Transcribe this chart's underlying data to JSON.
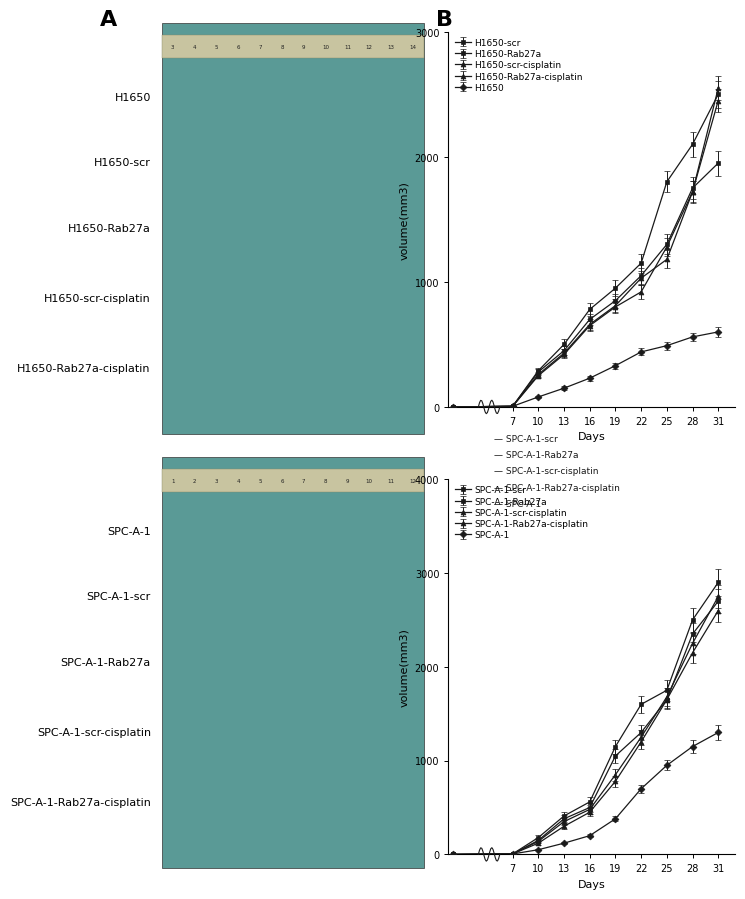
{
  "panel_A_label": "A",
  "panel_B_label": "B",
  "top_photo_labels": [
    "H1650",
    "H1650-scr",
    "H1650-Rab27a",
    "H1650-scr-cisplatin",
    "H1650-Rab27a-cisplatin"
  ],
  "bottom_photo_labels": [
    "SPC-A-1",
    "SPC-A-1-scr",
    "SPC-A-1-Rab27a",
    "SPC-A-1-scr-cisplatin",
    "SPC-A-1-Rab27a-cisplatin"
  ],
  "chart1": {
    "days": [
      0,
      7,
      10,
      13,
      16,
      19,
      22,
      25,
      28,
      31
    ],
    "ylabel": "volume(mm3)",
    "xlabel": "Days",
    "ylim": [
      0,
      3000
    ],
    "yticks": [
      0,
      1000,
      2000,
      3000
    ],
    "series": [
      {
        "label": "H1650-scr",
        "marker": "s",
        "values": [
          0,
          5,
          280,
          450,
          700,
          850,
          1050,
          1300,
          1750,
          1950
        ],
        "errors": [
          0,
          5,
          25,
          35,
          45,
          55,
          65,
          80,
          90,
          100
        ]
      },
      {
        "label": "H1650-Rab27a",
        "marker": "s",
        "values": [
          0,
          5,
          290,
          500,
          780,
          950,
          1150,
          1800,
          2100,
          2500
        ],
        "errors": [
          0,
          5,
          25,
          40,
          55,
          65,
          75,
          85,
          100,
          110
        ]
      },
      {
        "label": "H1650-scr-cisplatin",
        "marker": "^",
        "values": [
          0,
          5,
          250,
          420,
          650,
          800,
          920,
          1280,
          1720,
          2450
        ],
        "errors": [
          0,
          5,
          20,
          30,
          40,
          50,
          55,
          70,
          85,
          95
        ]
      },
      {
        "label": "H1650-Rab27a-cisplatin",
        "marker": "^",
        "values": [
          0,
          5,
          260,
          430,
          660,
          810,
          1030,
          1180,
          1720,
          2550
        ],
        "errors": [
          0,
          5,
          22,
          32,
          42,
          52,
          58,
          72,
          88,
          98
        ]
      },
      {
        "label": "H1650",
        "marker": "D",
        "values": [
          0,
          5,
          80,
          150,
          230,
          330,
          440,
          490,
          560,
          600
        ],
        "errors": [
          0,
          3,
          10,
          15,
          20,
          25,
          28,
          32,
          35,
          38
        ]
      }
    ]
  },
  "chart2": {
    "days": [
      0,
      7,
      10,
      13,
      16,
      19,
      22,
      25,
      28,
      31
    ],
    "ylabel": "volume(mm3)",
    "xlabel": "Days",
    "ylim": [
      0,
      4000
    ],
    "yticks": [
      0,
      1000,
      2000,
      3000,
      4000
    ],
    "series": [
      {
        "label": "SPC-A-1-scr",
        "marker": "s",
        "values": [
          0,
          5,
          150,
          380,
          500,
          1050,
          1300,
          1650,
          2350,
          2700
        ],
        "errors": [
          0,
          5,
          20,
          35,
          45,
          70,
          80,
          100,
          120,
          130
        ]
      },
      {
        "label": "SPC-A-1-Rab27a",
        "marker": "s",
        "values": [
          0,
          5,
          180,
          410,
          560,
          1150,
          1600,
          1750,
          2500,
          2900
        ],
        "errors": [
          0,
          5,
          22,
          38,
          50,
          75,
          90,
          110,
          130,
          140
        ]
      },
      {
        "label": "SPC-A-1-scr-cisplatin",
        "marker": "^",
        "values": [
          0,
          5,
          120,
          300,
          450,
          780,
          1200,
          1650,
          2150,
          2600
        ],
        "errors": [
          0,
          5,
          18,
          30,
          40,
          60,
          75,
          90,
          110,
          120
        ]
      },
      {
        "label": "SPC-A-1-Rab27a-cisplatin",
        "marker": "^",
        "values": [
          0,
          5,
          140,
          350,
          480,
          850,
          1250,
          1680,
          2250,
          2750
        ],
        "errors": [
          0,
          5,
          20,
          33,
          44,
          65,
          80,
          95,
          115,
          125
        ]
      },
      {
        "label": "SPC-A-1",
        "marker": "D",
        "values": [
          0,
          5,
          50,
          120,
          200,
          380,
          700,
          950,
          1150,
          1300
        ],
        "errors": [
          0,
          3,
          8,
          12,
          18,
          28,
          40,
          55,
          65,
          75
        ]
      }
    ]
  },
  "bg_color": "#ffffff",
  "line_color": "#1a1a1a",
  "photo_teal": "#5a9a96",
  "ruler_color": "#c8c4a0",
  "label_fontsize": 8,
  "axis_label_fontsize": 8,
  "tick_fontsize": 7,
  "legend_fontsize": 6.5,
  "panel_label_fontsize": 16
}
